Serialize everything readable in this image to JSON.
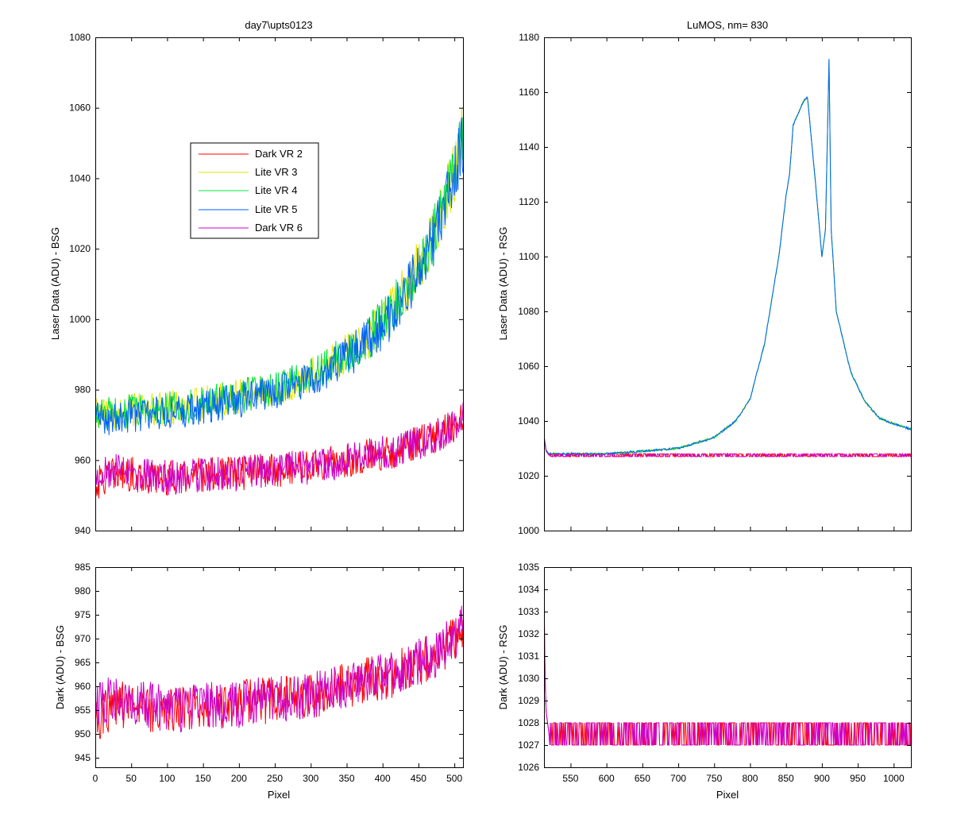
{
  "figure": {
    "background": "#ffffff"
  },
  "chart_data": [
    {
      "id": "top-left",
      "type": "line",
      "title": "day7\\upts0123",
      "xlabel": "",
      "ylabel": "Laser Data (ADU) - BSG",
      "xlim": [
        0,
        512
      ],
      "ylim": [
        940,
        1080
      ],
      "xticks": [
        0,
        50,
        100,
        150,
        200,
        250,
        300,
        350,
        400,
        450,
        500
      ],
      "yticks": [
        940,
        960,
        980,
        1000,
        1020,
        1040,
        1060,
        1080
      ],
      "show_x_ticklabels": false,
      "grid": false,
      "legend": {
        "placement": "upper-middle",
        "entries": [
          "Dark VR 2",
          "Lite VR 3",
          "Lite VR 4",
          "Lite VR 5",
          "Dark VR 6"
        ]
      },
      "series_colors": {
        "Dark VR 2": "#ff0000",
        "Lite VR 3": "#e6e600",
        "Lite VR 4": "#00e040",
        "Lite VR 5": "#0060ff",
        "Dark VR 6": "#cc00cc"
      },
      "series": [
        {
          "name": "Dark VR 2",
          "x": [
            0,
            25,
            50,
            75,
            100,
            125,
            150,
            175,
            200,
            225,
            250,
            275,
            300,
            325,
            350,
            375,
            400,
            425,
            450,
            475,
            500,
            510
          ],
          "values": [
            953,
            956,
            956,
            955,
            955,
            955,
            956,
            956,
            956,
            957,
            957,
            958,
            958,
            959,
            960,
            961,
            962,
            963,
            965,
            967,
            970,
            972
          ]
        },
        {
          "name": "Lite VR 3",
          "x": [
            0,
            25,
            50,
            75,
            100,
            125,
            150,
            175,
            200,
            225,
            250,
            275,
            300,
            325,
            350,
            375,
            400,
            425,
            450,
            475,
            500,
            510
          ],
          "values": [
            973,
            973,
            974,
            974,
            975,
            975,
            976,
            977,
            978,
            979,
            980,
            982,
            984,
            987,
            990,
            994,
            999,
            1006,
            1015,
            1026,
            1042,
            1052
          ]
        },
        {
          "name": "Lite VR 4",
          "x": [
            0,
            25,
            50,
            75,
            100,
            125,
            150,
            175,
            200,
            225,
            250,
            275,
            300,
            325,
            350,
            375,
            400,
            425,
            450,
            475,
            500,
            510
          ],
          "values": [
            973,
            973,
            974,
            974,
            975,
            975,
            976,
            977,
            978,
            979,
            980,
            982,
            984,
            987,
            990,
            994,
            999,
            1006,
            1015,
            1026,
            1042,
            1052
          ]
        },
        {
          "name": "Lite VR 5",
          "x": [
            0,
            25,
            50,
            75,
            100,
            125,
            150,
            175,
            200,
            225,
            250,
            275,
            300,
            325,
            350,
            375,
            400,
            425,
            450,
            475,
            500,
            510
          ],
          "values": [
            972,
            972,
            973,
            973,
            974,
            974,
            975,
            976,
            977,
            978,
            979,
            981,
            983,
            986,
            989,
            993,
            998,
            1005,
            1014,
            1025,
            1040,
            1050
          ]
        },
        {
          "name": "Dark VR 6",
          "x": [
            0,
            25,
            50,
            75,
            100,
            125,
            150,
            175,
            200,
            225,
            250,
            275,
            300,
            325,
            350,
            375,
            400,
            425,
            450,
            475,
            500,
            510
          ],
          "values": [
            957,
            957,
            956,
            956,
            955,
            955,
            956,
            956,
            956,
            957,
            957,
            958,
            958,
            959,
            960,
            961,
            962,
            963,
            965,
            967,
            970,
            972
          ]
        }
      ]
    },
    {
      "id": "top-right",
      "type": "line",
      "title": "LuMOS, nm= 830",
      "xlabel": "",
      "ylabel": "Laser Data (ADU) - RSG",
      "xlim": [
        513,
        1024
      ],
      "ylim": [
        1000,
        1180
      ],
      "xticks": [
        550,
        600,
        650,
        700,
        750,
        800,
        850,
        900,
        950,
        1000
      ],
      "yticks": [
        1000,
        1020,
        1040,
        1060,
        1080,
        1100,
        1120,
        1140,
        1160,
        1180
      ],
      "show_x_ticklabels": false,
      "grid": false,
      "series": [
        {
          "name": "Dark VR 2",
          "x": [
            513,
            516,
            520,
            600,
            700,
            800,
            900,
            1000,
            1024
          ],
          "values": [
            1034,
            1029,
            1027.5,
            1027.5,
            1027.5,
            1027.5,
            1027.5,
            1027.5,
            1027.5
          ]
        },
        {
          "name": "Lite VR 3",
          "x": [
            513,
            516,
            520,
            600,
            650,
            700,
            750,
            780,
            800,
            820,
            840,
            850,
            855,
            860,
            875,
            880,
            890,
            900,
            905,
            910,
            913,
            920,
            940,
            960,
            980,
            1000,
            1024
          ],
          "values": [
            1035,
            1029,
            1028,
            1028,
            1029,
            1030,
            1034,
            1040,
            1048,
            1068,
            1100,
            1122,
            1130,
            1148,
            1157,
            1158,
            1130,
            1100,
            1110,
            1172,
            1110,
            1080,
            1058,
            1047,
            1041,
            1039,
            1037
          ]
        },
        {
          "name": "Lite VR 4",
          "x": [
            513,
            516,
            520,
            600,
            650,
            700,
            750,
            780,
            800,
            820,
            840,
            850,
            855,
            860,
            875,
            880,
            890,
            900,
            905,
            910,
            913,
            920,
            940,
            960,
            980,
            1000,
            1024
          ],
          "values": [
            1035,
            1029,
            1028,
            1028,
            1029,
            1030,
            1034,
            1040,
            1048,
            1068,
            1100,
            1122,
            1130,
            1148,
            1157,
            1158,
            1130,
            1100,
            1110,
            1172,
            1110,
            1080,
            1058,
            1047,
            1041,
            1039,
            1037
          ]
        },
        {
          "name": "Lite VR 5",
          "x": [
            513,
            516,
            520,
            600,
            650,
            700,
            750,
            780,
            800,
            820,
            840,
            850,
            855,
            860,
            875,
            880,
            890,
            900,
            905,
            910,
            913,
            920,
            940,
            960,
            980,
            1000,
            1024
          ],
          "values": [
            1035,
            1029,
            1028,
            1028,
            1029,
            1030,
            1034,
            1040,
            1048,
            1068,
            1100,
            1122,
            1130,
            1148,
            1157,
            1158,
            1130,
            1100,
            1110,
            1172,
            1110,
            1080,
            1058,
            1047,
            1041,
            1039,
            1037
          ]
        },
        {
          "name": "Dark VR 6",
          "x": [
            513,
            516,
            520,
            600,
            700,
            800,
            900,
            1000,
            1024
          ],
          "values": [
            1034,
            1029,
            1027.5,
            1027.5,
            1027.5,
            1027.5,
            1027.5,
            1027.5,
            1027.5
          ]
        }
      ]
    },
    {
      "id": "bottom-left",
      "type": "line",
      "title": "",
      "xlabel": "Pixel",
      "ylabel": "Dark (ADU) - BSG",
      "xlim": [
        0,
        512
      ],
      "ylim": [
        943,
        985
      ],
      "xticks": [
        0,
        50,
        100,
        150,
        200,
        250,
        300,
        350,
        400,
        450,
        500
      ],
      "yticks": [
        945,
        950,
        955,
        960,
        965,
        970,
        975,
        980,
        985
      ],
      "show_x_ticklabels": true,
      "grid": false,
      "series": [
        {
          "name": "Dark VR 2",
          "x": [
            0,
            25,
            50,
            75,
            100,
            125,
            150,
            175,
            200,
            225,
            250,
            275,
            300,
            325,
            350,
            375,
            400,
            425,
            450,
            475,
            500,
            510
          ],
          "values": [
            953,
            956,
            956,
            955,
            955,
            955,
            956,
            956,
            956,
            957,
            957,
            958,
            958,
            959,
            960,
            961,
            962,
            963,
            965,
            967,
            970,
            972
          ]
        },
        {
          "name": "Dark VR 6",
          "x": [
            0,
            25,
            50,
            75,
            100,
            125,
            150,
            175,
            200,
            225,
            250,
            275,
            300,
            325,
            350,
            375,
            400,
            425,
            450,
            475,
            500,
            510
          ],
          "values": [
            957,
            957,
            956,
            956,
            955,
            955,
            956,
            956,
            956,
            957,
            957,
            958,
            958,
            959,
            960,
            961,
            962,
            963,
            965,
            967,
            970,
            972
          ]
        }
      ]
    },
    {
      "id": "bottom-right",
      "type": "line",
      "title": "",
      "xlabel": "Pixel",
      "ylabel": "Dark (ADU) - RSG",
      "xlim": [
        513,
        1024
      ],
      "ylim": [
        1026,
        1035
      ],
      "xticks": [
        550,
        600,
        650,
        700,
        750,
        800,
        850,
        900,
        950,
        1000
      ],
      "yticks": [
        1026,
        1027,
        1028,
        1029,
        1030,
        1031,
        1032,
        1033,
        1034,
        1035
      ],
      "show_x_ticklabels": true,
      "grid": false,
      "series": [
        {
          "name": "Dark VR 2",
          "x": [
            513,
            514,
            515,
            516,
            518,
            520,
            1024
          ],
          "values": [
            1034,
            1031.5,
            1029.5,
            1028.5,
            1028,
            1027.5,
            1027.5
          ]
        },
        {
          "name": "Dark VR 6",
          "x": [
            513,
            514,
            515,
            516,
            518,
            520,
            1024
          ],
          "values": [
            1034,
            1031,
            1029.5,
            1028.5,
            1028,
            1027.5,
            1027.5
          ]
        }
      ]
    }
  ]
}
